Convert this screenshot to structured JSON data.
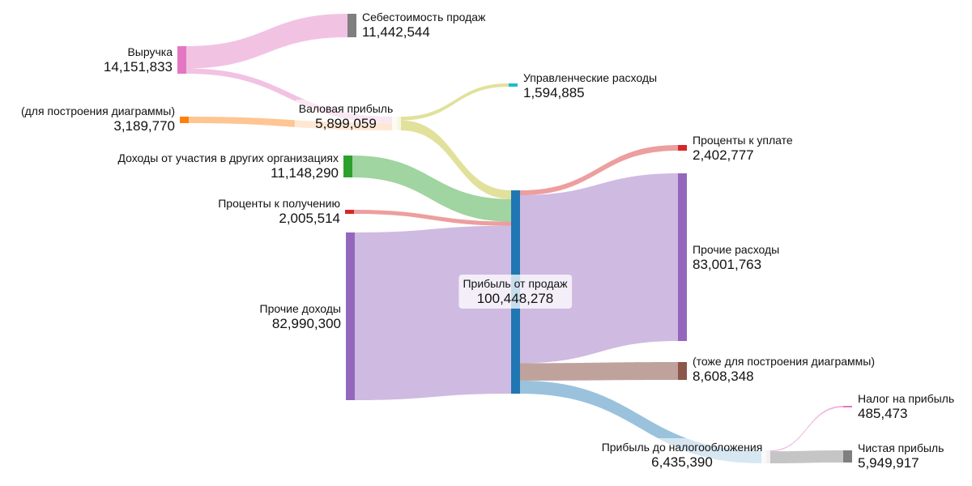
{
  "chart_data": {
    "type": "sankey",
    "nodes": [
      {
        "id": "revenue",
        "name": "Выручка",
        "value": "14,151,833",
        "color": "#e377c2"
      },
      {
        "id": "chart_helper",
        "name": "(для построения диаграммы)",
        "value": "3,189,770",
        "color": "#ff7f0e"
      },
      {
        "id": "other_orgs",
        "name": "Доходы от участия в других организациях",
        "value": "11,148,290",
        "color": "#2ca02c"
      },
      {
        "id": "interest_recv",
        "name": "Проценты к получению",
        "value": "2,005,514",
        "color": "#d62728"
      },
      {
        "id": "other_income",
        "name": "Прочие доходы",
        "value": "82,990,300",
        "color": "#9467bd"
      },
      {
        "id": "cogs",
        "name": "Себестоимость продаж",
        "value": "11,442,544",
        "color": "#7f7f7f"
      },
      {
        "id": "gross_profit",
        "name": "Валовая прибыль",
        "value": "5,899,059",
        "color": "#f7f7e6"
      },
      {
        "id": "mgmt_exp",
        "name": "Управленческие расходы",
        "value": "1,594,885",
        "color": "#17becf"
      },
      {
        "id": "sales_profit",
        "name": "Прибыль от продаж",
        "value": "100,448,278",
        "color": "#1f77b4"
      },
      {
        "id": "interest_pay",
        "name": "Проценты к уплате",
        "value": "2,402,777",
        "color": "#d62728"
      },
      {
        "id": "other_exp",
        "name": "Прочие расходы",
        "value": "83,001,763",
        "color": "#9467bd"
      },
      {
        "id": "chart_helper2",
        "name": "(тоже для построения диаграммы)",
        "value": "8,608,348",
        "color": "#8c564b"
      },
      {
        "id": "pretax",
        "name": "Прибыль до налогообложения",
        "value": "6,435,390",
        "color": "#f0f0f0"
      },
      {
        "id": "tax",
        "name": "Налог на прибыль",
        "value": "485,473",
        "color": "#e377c2"
      },
      {
        "id": "net_profit",
        "name": "Чистая прибыль",
        "value": "5,949,917",
        "color": "#7f7f7f"
      }
    ],
    "links": [
      {
        "source": "revenue",
        "target": "cogs",
        "value": 11442544
      },
      {
        "source": "revenue",
        "target": "gross_profit",
        "value": 2709289
      },
      {
        "source": "chart_helper",
        "target": "gross_profit",
        "value": 3189770
      },
      {
        "source": "gross_profit",
        "target": "mgmt_exp",
        "value": 1594885
      },
      {
        "source": "gross_profit",
        "target": "sales_profit",
        "value": 4304174
      },
      {
        "source": "other_orgs",
        "target": "sales_profit",
        "value": 11148290
      },
      {
        "source": "interest_recv",
        "target": "sales_profit",
        "value": 2005514
      },
      {
        "source": "other_income",
        "target": "sales_profit",
        "value": 82990300
      },
      {
        "source": "sales_profit",
        "target": "interest_pay",
        "value": 2402777
      },
      {
        "source": "sales_profit",
        "target": "other_exp",
        "value": 83001763
      },
      {
        "source": "sales_profit",
        "target": "chart_helper2",
        "value": 8608348
      },
      {
        "source": "sales_profit",
        "target": "pretax",
        "value": 6435390
      },
      {
        "source": "pretax",
        "target": "tax",
        "value": 485473
      },
      {
        "source": "pretax",
        "target": "net_profit",
        "value": 5949917
      }
    ]
  }
}
